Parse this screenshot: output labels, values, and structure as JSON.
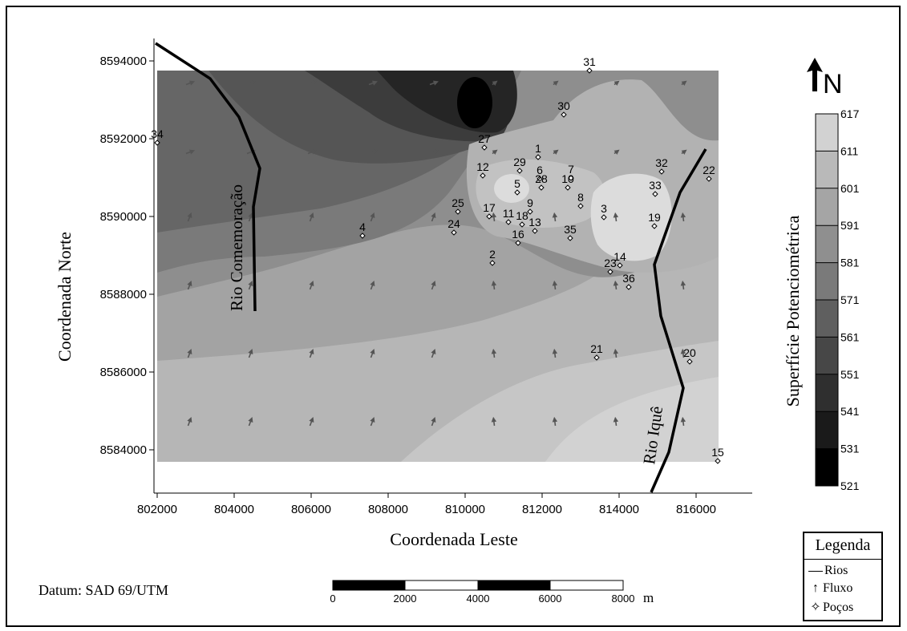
{
  "map": {
    "axis_y_title": "Coordenada Norte",
    "axis_x_title": "Coordenada Leste",
    "y_ticks": [
      "8594000",
      "8592000",
      "8590000",
      "8588000",
      "8586000",
      "8584000"
    ],
    "x_ticks": [
      "802000",
      "804000",
      "806000",
      "808000",
      "810000",
      "812000",
      "814000",
      "816000"
    ],
    "rivers": [
      "Rio Comemoração",
      "Rio Iquê"
    ],
    "wells": [
      "31",
      "30",
      "34",
      "27",
      "1",
      "29",
      "6",
      "7",
      "12",
      "28",
      "10",
      "5",
      "32",
      "22",
      "33",
      "9",
      "8",
      "25",
      "17",
      "11",
      "18",
      "3",
      "19",
      "4",
      "13",
      "24",
      "35",
      "16",
      "2",
      "14",
      "23",
      "36",
      "21",
      "20",
      "15"
    ]
  },
  "datum": "Datum: SAD 69/UTM",
  "scale_bar": {
    "ticks": [
      "0",
      "2000",
      "4000",
      "6000",
      "8000"
    ],
    "unit": "m"
  },
  "north_label": "N",
  "colorbar": {
    "title": "Superfície Potenciométrica",
    "ticks": [
      "617",
      "611",
      "601",
      "591",
      "581",
      "571",
      "561",
      "551",
      "541",
      "531",
      "521"
    ],
    "colors": [
      "#d2d2d2",
      "#b9b9b9",
      "#a5a5a5",
      "#8f8f8f",
      "#7a7a7a",
      "#5f5f5f",
      "#474747",
      "#2f2f2f",
      "#1a1a1a",
      "#000000"
    ]
  },
  "legend": {
    "title": "Legenda",
    "items": [
      "Rios",
      "Fluxo",
      "Poços"
    ]
  }
}
